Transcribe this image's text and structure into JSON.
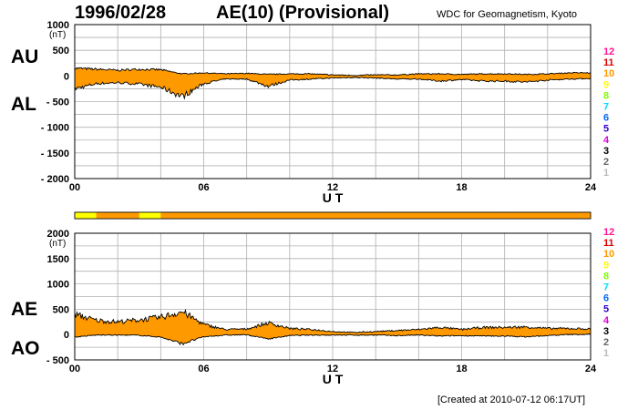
{
  "header": {
    "date": "1996/02/28",
    "title": "AE(10) (Provisional)",
    "source": "WDC for Geomagnetism, Kyoto"
  },
  "footer": {
    "created": "[Created at 2010-07-12 06:17UT]"
  },
  "colors": {
    "fill": "#ff9900",
    "grid": "#b0b0b0",
    "quality_scale": [
      "#ff1493",
      "#dd0000",
      "#ff9900",
      "#ffff00",
      "#7fff00",
      "#00ddff",
      "#0066ff",
      "#3300cc",
      "#dd00dd",
      "#000000",
      "#666666",
      "#bbbbbb"
    ]
  },
  "quality_scale_labels": [
    "12",
    "11",
    "10",
    "9",
    "8",
    "7",
    "6",
    "5",
    "4",
    "3",
    "2",
    "1"
  ],
  "chart_data": [
    {
      "type": "area",
      "name": "AU/AL",
      "series_labels": [
        "AU",
        "AL"
      ],
      "unit": "(nT)",
      "xlabel": "U T",
      "xlim": [
        0,
        24
      ],
      "ylim": [
        -2000,
        1000
      ],
      "yticks": [
        "1000",
        "500",
        "0",
        "- 500",
        "- 1000",
        "- 1500",
        "- 2000"
      ],
      "xticks": [
        "00",
        "06",
        "12",
        "18",
        "24"
      ],
      "grid": true,
      "x": [
        0,
        1,
        2,
        3,
        4,
        5,
        6,
        7,
        8,
        9,
        10,
        11,
        12,
        13,
        14,
        15,
        16,
        17,
        18,
        19,
        20,
        21,
        22,
        23,
        24
      ],
      "series": [
        {
          "name": "AU",
          "values": [
            150,
            130,
            110,
            130,
            120,
            40,
            60,
            40,
            50,
            30,
            40,
            40,
            20,
            10,
            20,
            20,
            40,
            40,
            30,
            40,
            40,
            30,
            40,
            60,
            60
          ]
        },
        {
          "name": "AL",
          "values": [
            -250,
            -150,
            -130,
            -160,
            -220,
            -400,
            -150,
            -60,
            -60,
            -200,
            -80,
            -60,
            -40,
            -30,
            -40,
            -60,
            -60,
            -100,
            -70,
            -100,
            -100,
            -120,
            -80,
            -60,
            -50
          ]
        }
      ]
    },
    {
      "type": "area",
      "name": "AE/AO",
      "series_labels": [
        "AE",
        "AO"
      ],
      "unit": "(nT)",
      "xlabel": "U T",
      "xlim": [
        0,
        24
      ],
      "ylim": [
        -500,
        2000
      ],
      "yticks": [
        "2000",
        "1500",
        "1000",
        "500",
        "0",
        "- 500"
      ],
      "xticks": [
        "00",
        "06",
        "12",
        "18",
        "24"
      ],
      "grid": true,
      "x": [
        0,
        1,
        2,
        3,
        4,
        5,
        6,
        7,
        8,
        9,
        10,
        11,
        12,
        13,
        14,
        15,
        16,
        17,
        18,
        19,
        20,
        21,
        22,
        23,
        24
      ],
      "series": [
        {
          "name": "AE",
          "values": [
            400,
            280,
            250,
            290,
            340,
            450,
            200,
            100,
            110,
            230,
            120,
            100,
            60,
            40,
            60,
            80,
            100,
            140,
            100,
            140,
            140,
            150,
            120,
            120,
            110
          ]
        },
        {
          "name": "AO",
          "values": [
            -50,
            -10,
            -10,
            -15,
            -50,
            -180,
            -45,
            -10,
            -5,
            -85,
            -20,
            -10,
            -10,
            -10,
            -10,
            -20,
            -10,
            -30,
            -20,
            -30,
            -30,
            -45,
            -20,
            0,
            5
          ]
        }
      ]
    }
  ],
  "quality_bar": {
    "hour_values": [
      9,
      10,
      10,
      9,
      10,
      10,
      10,
      10,
      10,
      10,
      10,
      10,
      10,
      10,
      10,
      10,
      10,
      10,
      10,
      10,
      10,
      10,
      10,
      10
    ]
  }
}
